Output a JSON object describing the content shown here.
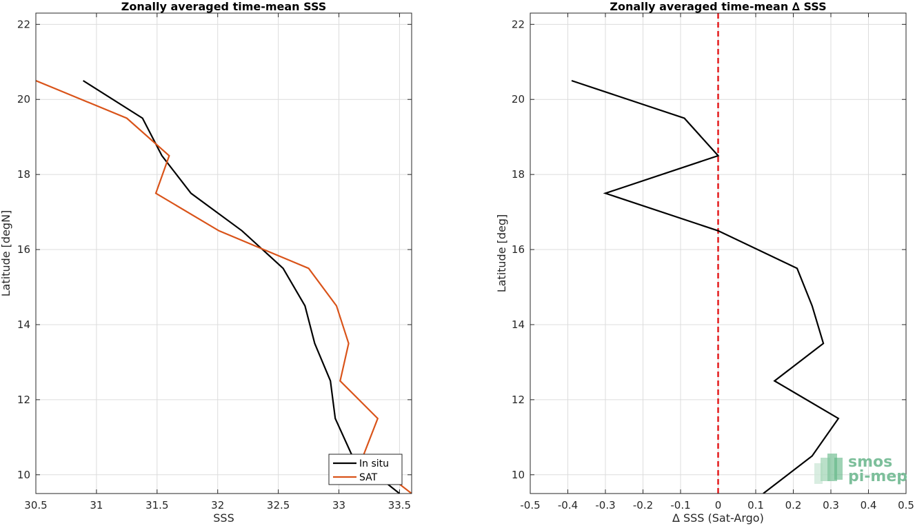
{
  "chart_data": [
    {
      "type": "line",
      "title": "Zonally averaged time-mean SSS",
      "xlabel": "SSS",
      "ylabel": "Latitude [degN]",
      "xlim": [
        30.5,
        33.6
      ],
      "ylim": [
        9.5,
        22.3
      ],
      "xticks": [
        "30.5",
        "31",
        "31.5",
        "32",
        "32.5",
        "33",
        "33.5"
      ],
      "yticks": [
        "10",
        "12",
        "14",
        "16",
        "18",
        "20",
        "22"
      ],
      "grid": true,
      "legend": "bottom-right",
      "series": [
        {
          "name": "In situ",
          "color": "#000000",
          "points": [
            [
              30.89,
              20.5
            ],
            [
              31.38,
              19.5
            ],
            [
              31.54,
              18.5
            ],
            [
              31.78,
              17.5
            ],
            [
              32.2,
              16.5
            ],
            [
              32.54,
              15.5
            ],
            [
              32.72,
              14.5
            ],
            [
              32.8,
              13.5
            ],
            [
              32.93,
              12.5
            ],
            [
              32.97,
              11.5
            ],
            [
              33.11,
              10.5
            ],
            [
              33.5,
              9.5
            ]
          ]
        },
        {
          "name": "SAT",
          "color": "#d95319",
          "points": [
            [
              30.5,
              20.5
            ],
            [
              31.25,
              19.5
            ],
            [
              31.6,
              18.5
            ],
            [
              31.49,
              17.5
            ],
            [
              32.01,
              16.5
            ],
            [
              32.75,
              15.5
            ],
            [
              32.98,
              14.5
            ],
            [
              33.08,
              13.5
            ],
            [
              33.01,
              12.5
            ],
            [
              33.32,
              11.5
            ],
            [
              33.2,
              10.5
            ],
            [
              33.6,
              9.5
            ]
          ]
        }
      ]
    },
    {
      "type": "line",
      "title": "Zonally averaged time-mean ∆ SSS",
      "xlabel": "∆ SSS (Sat-Argo)",
      "ylabel": "Latitude [deg]",
      "xlim": [
        -0.5,
        0.5
      ],
      "ylim": [
        9.5,
        22.3
      ],
      "xticks": [
        "-0.5",
        "-0.4",
        "-0.3",
        "-0.2",
        "-0.1",
        "0",
        "0.1",
        "0.2",
        "0.3",
        "0.4",
        "0.5"
      ],
      "yticks": [
        "10",
        "12",
        "14",
        "16",
        "18",
        "20",
        "22"
      ],
      "grid": true,
      "series": [
        {
          "color": "#000000",
          "points": [
            [
              -0.39,
              20.5
            ],
            [
              -0.09,
              19.5
            ],
            [
              0.0,
              18.5
            ],
            [
              -0.3,
              17.5
            ],
            [
              0.0,
              16.5
            ],
            [
              0.21,
              15.5
            ],
            [
              0.25,
              14.5
            ],
            [
              0.28,
              13.5
            ],
            [
              0.15,
              12.5
            ],
            [
              0.32,
              11.5
            ],
            [
              0.25,
              10.5
            ],
            [
              0.12,
              9.5
            ]
          ]
        }
      ],
      "reference_line": {
        "x": 0,
        "color": "#e41a1c",
        "style": "dashed"
      }
    }
  ],
  "watermark": {
    "line1": "smos",
    "line2": "pi-mep"
  }
}
